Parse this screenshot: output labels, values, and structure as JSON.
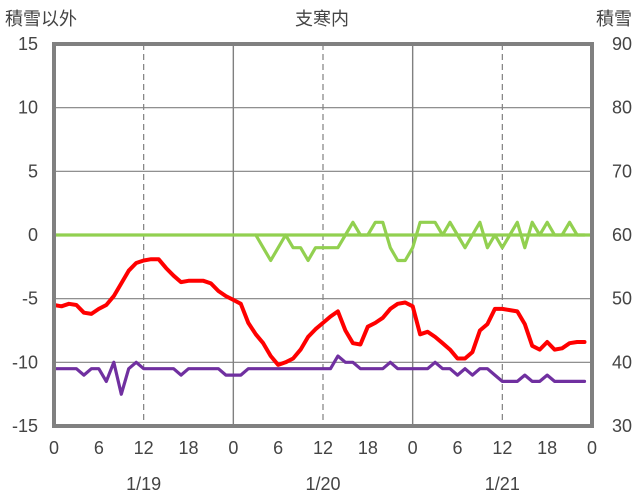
{
  "chart_data": {
    "type": "line",
    "title": "支寒内",
    "ylabel_left": "積雪以外",
    "ylabel_right": "積雪",
    "ylim_left": [
      -15,
      15
    ],
    "yticks_left": [
      "15",
      "10",
      "5",
      "0",
      "-5",
      "-10",
      "-15"
    ],
    "ylim_right": [
      30,
      90
    ],
    "yticks_right": [
      "90",
      "80",
      "70",
      "60",
      "50",
      "40",
      "30"
    ],
    "xlim": [
      0,
      72
    ],
    "xtick_labels": [
      "0",
      "6",
      "12",
      "18",
      "0",
      "6",
      "12",
      "18",
      "0",
      "6",
      "12",
      "18",
      "0"
    ],
    "date_labels": [
      "1/19",
      "1/20",
      "1/21"
    ],
    "grid": true,
    "colors": {
      "axis": "#808080",
      "grid": "#808080",
      "text": "#444444"
    },
    "series": [
      {
        "axis": "right",
        "color": "#92d050",
        "x": [
          0,
          1,
          2,
          3,
          4,
          5,
          6,
          7,
          8,
          9,
          10,
          11,
          12,
          13,
          14,
          15,
          16,
          17,
          18,
          19,
          20,
          21,
          22,
          23,
          24,
          25,
          26,
          27,
          28,
          29,
          30,
          31,
          32,
          33,
          34,
          35,
          36,
          37,
          38,
          39,
          40,
          41,
          42,
          43,
          44,
          45,
          46,
          47,
          48,
          49,
          50,
          51,
          52,
          53,
          54,
          55,
          56,
          57,
          58,
          59,
          60,
          61,
          62,
          63,
          64,
          65,
          66,
          67,
          68,
          69,
          70,
          71,
          72
        ],
        "values": [
          60,
          60,
          60,
          60,
          60,
          60,
          60,
          60,
          60,
          60,
          60,
          60,
          60,
          60,
          60,
          60,
          60,
          60,
          60,
          60,
          60,
          60,
          60,
          60,
          60,
          60,
          60,
          60,
          60,
          60,
          60,
          60,
          60,
          60,
          60,
          60,
          60,
          60,
          60,
          60,
          60,
          60,
          60,
          60,
          60,
          60,
          60,
          60,
          60,
          60,
          60,
          60,
          60,
          60,
          60,
          60,
          60,
          60,
          60,
          60,
          60,
          60,
          60,
          60,
          60,
          60,
          60,
          60,
          60,
          60,
          60,
          60,
          60
        ]
      },
      {
        "axis": "right",
        "color": "#92d050",
        "x": [
          27,
          28,
          29,
          30,
          31,
          32,
          33,
          34,
          35,
          36,
          37,
          38,
          39,
          40,
          41,
          42,
          43,
          44,
          45,
          46,
          47,
          48,
          49,
          50,
          51,
          52,
          53,
          54,
          55,
          56,
          57,
          58,
          59,
          60,
          61,
          62,
          63,
          64,
          65,
          66,
          67,
          68,
          69,
          70,
          71
        ],
        "values": [
          60,
          58,
          56,
          58,
          60,
          58,
          58,
          56,
          58,
          58,
          58,
          58,
          60,
          62,
          60,
          60,
          62,
          62,
          58,
          56,
          56,
          58,
          62,
          62,
          62,
          60,
          62,
          60,
          58,
          60,
          62,
          58,
          60,
          58,
          60,
          62,
          58,
          62,
          60,
          62,
          60,
          60,
          62,
          60,
          60
        ]
      },
      {
        "axis": "left",
        "color": "#ff0000",
        "x": [
          0,
          1,
          2,
          3,
          4,
          5,
          6,
          7,
          8,
          9,
          10,
          11,
          12,
          13,
          14,
          15,
          16,
          17,
          18,
          19,
          20,
          21,
          22,
          23,
          24,
          25,
          26,
          27,
          28,
          29,
          30,
          31,
          32,
          33,
          34,
          35,
          36,
          37,
          38,
          39,
          40,
          41,
          42,
          43,
          44,
          45,
          46,
          47,
          48,
          49,
          50,
          51,
          52,
          53,
          54,
          55,
          56,
          57,
          58,
          59,
          60,
          61,
          62,
          63,
          64,
          65,
          66,
          67,
          68,
          69,
          70,
          71
        ],
        "values": [
          -5.5,
          -5.6,
          -5.4,
          -5.5,
          -6.1,
          -6.2,
          -5.8,
          -5.5,
          -4.8,
          -3.8,
          -2.8,
          -2.2,
          -2.0,
          -1.9,
          -1.9,
          -2.6,
          -3.2,
          -3.7,
          -3.6,
          -3.6,
          -3.6,
          -3.8,
          -4.4,
          -4.8,
          -5.1,
          -5.4,
          -6.9,
          -7.8,
          -8.5,
          -9.5,
          -10.2,
          -10.0,
          -9.7,
          -9.0,
          -8.0,
          -7.4,
          -6.9,
          -6.4,
          -6.0,
          -7.5,
          -8.5,
          -8.6,
          -7.2,
          -6.9,
          -6.5,
          -5.8,
          -5.4,
          -5.3,
          -5.6,
          -7.8,
          -7.6,
          -8.0,
          -8.5,
          -9.0,
          -9.7,
          -9.7,
          -9.2,
          -7.5,
          -7.0,
          -5.8,
          -5.8,
          -5.9,
          -6.0,
          -7.0,
          -8.7,
          -9.0,
          -8.4,
          -9.0,
          -8.9,
          -8.5,
          -8.4,
          -8.4
        ]
      },
      {
        "axis": "left",
        "color": "#7030a0",
        "x": [
          0,
          1,
          2,
          3,
          4,
          5,
          6,
          7,
          8,
          9,
          10,
          11,
          12,
          13,
          14,
          15,
          16,
          17,
          18,
          19,
          20,
          21,
          22,
          23,
          24,
          25,
          26,
          27,
          28,
          29,
          30,
          31,
          32,
          33,
          34,
          35,
          36,
          37,
          38,
          39,
          40,
          41,
          42,
          43,
          44,
          45,
          46,
          47,
          48,
          49,
          50,
          51,
          52,
          53,
          54,
          55,
          56,
          57,
          58,
          59,
          60,
          61,
          62,
          63,
          64,
          65,
          66,
          67,
          68,
          69,
          70,
          71
        ],
        "values": [
          -10.5,
          -10.5,
          -10.5,
          -10.5,
          -11.0,
          -10.5,
          -10.5,
          -11.5,
          -10.0,
          -12.5,
          -10.5,
          -10.0,
          -10.5,
          -10.5,
          -10.5,
          -10.5,
          -10.5,
          -11.0,
          -10.5,
          -10.5,
          -10.5,
          -10.5,
          -10.5,
          -11.0,
          -11.0,
          -11.0,
          -10.5,
          -10.5,
          -10.5,
          -10.5,
          -10.5,
          -10.5,
          -10.5,
          -10.5,
          -10.5,
          -10.5,
          -10.5,
          -10.5,
          -9.5,
          -10.0,
          -10.0,
          -10.5,
          -10.5,
          -10.5,
          -10.5,
          -10.0,
          -10.5,
          -10.5,
          -10.5,
          -10.5,
          -10.5,
          -10.0,
          -10.5,
          -10.5,
          -11.0,
          -10.5,
          -11.0,
          -10.5,
          -10.5,
          -11.0,
          -11.5,
          -11.5,
          -11.5,
          -11.0,
          -11.5,
          -11.5,
          -11.0,
          -11.5,
          -11.5,
          -11.5,
          -11.5,
          -11.5
        ]
      }
    ]
  }
}
